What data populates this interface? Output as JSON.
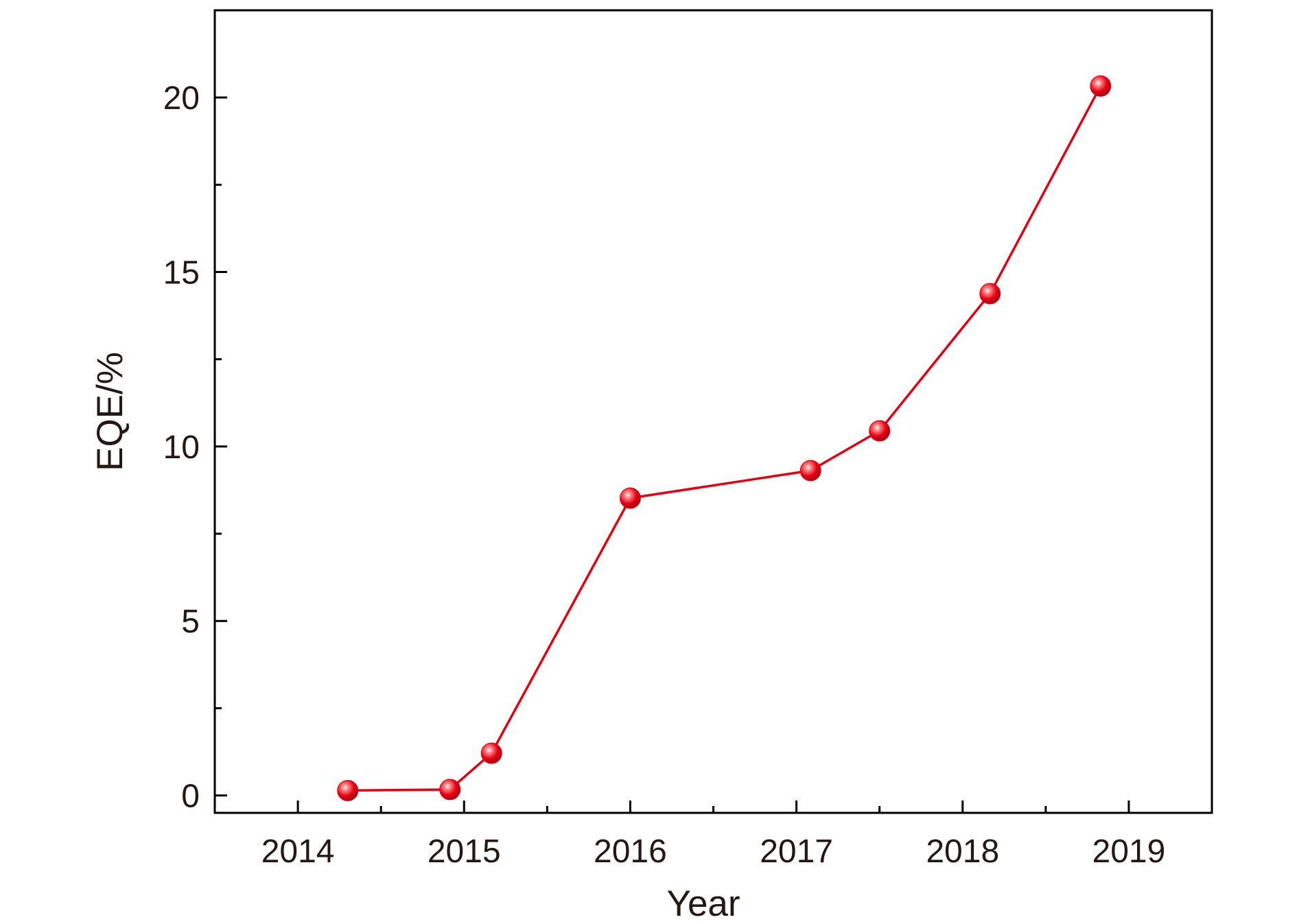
{
  "chart_data": {
    "type": "line",
    "x_label": "Year",
    "y_label": "EQE/%",
    "series": [
      {
        "name": "EQE",
        "color": "#e60012",
        "x": [
          2014.3,
          2014.915,
          2015.165,
          2016.0,
          2017.085,
          2017.5,
          2018.165,
          2018.83
        ],
        "values": [
          0.14,
          0.17,
          1.21,
          8.52,
          9.31,
          10.45,
          14.38,
          20.33
        ]
      }
    ],
    "xlim": [
      2013.5,
      2019.5
    ],
    "xticks": [
      2014,
      2015,
      2016,
      2017,
      2018,
      2019
    ],
    "xminorticks": [
      2014.5,
      2015.5,
      2016.5,
      2017.5,
      2018.5
    ],
    "ylim": [
      -0.5,
      22.5
    ],
    "yticks": [
      0,
      5,
      10,
      15,
      20
    ],
    "yminorticks": [
      2.5,
      7.5,
      12.5,
      17.5,
      22.5
    ]
  }
}
